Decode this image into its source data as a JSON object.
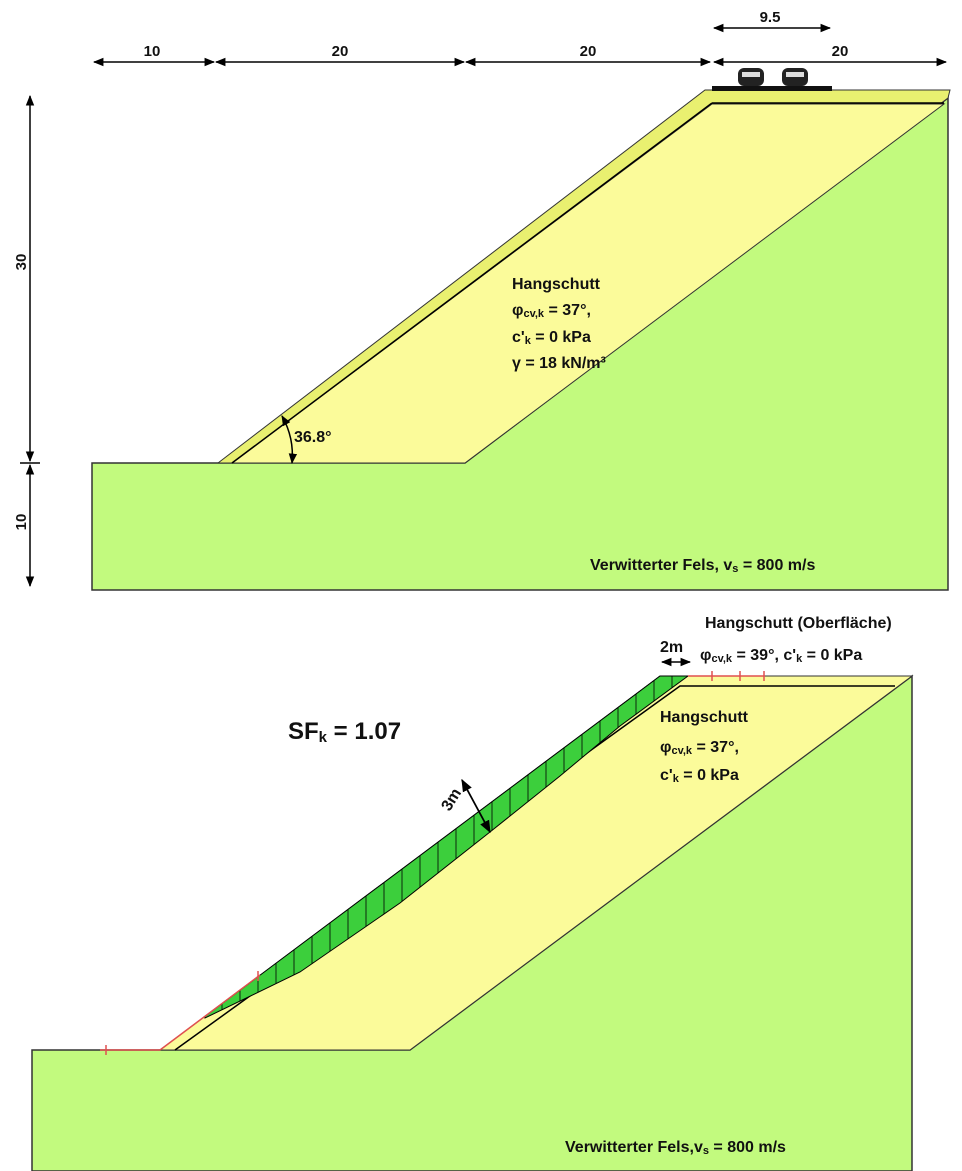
{
  "top": {
    "dimensions": {
      "horizontal": [
        "10",
        "20",
        "20",
        "20"
      ],
      "load_width": "9.5",
      "vertical": [
        "30",
        "10"
      ]
    },
    "soil": {
      "name": "Hangschutt",
      "phi": [
        "φ",
        "cv,k",
        " = 37°,"
      ],
      "cohesion": [
        "c'",
        "k",
        " = 0 kPa"
      ],
      "unit_weight": "γ = 18 kN/m³"
    },
    "angle": "36.8°",
    "rock": [
      "Verwitterter Fels, v",
      "s",
      " = 800 m/s"
    ]
  },
  "bottom": {
    "surface_layer": {
      "name": "Hangschutt (Oberfläche)",
      "phi": [
        "φ",
        "cv,k",
        " = 39°, c'",
        "k",
        " = 0 kPa"
      ],
      "thickness": "2m"
    },
    "safety_factor": [
      "SF",
      "k",
      " = 1.07"
    ],
    "soil": {
      "name": "Hangschutt",
      "phi": [
        "φ",
        "cv,k",
        " = 37°,"
      ],
      "cohesion": [
        "c'",
        "k",
        " = 0 kPa"
      ]
    },
    "slide_depth": "3m",
    "rock": [
      "Verwitterter Fels,v",
      "s",
      " = 800 m/s"
    ]
  }
}
